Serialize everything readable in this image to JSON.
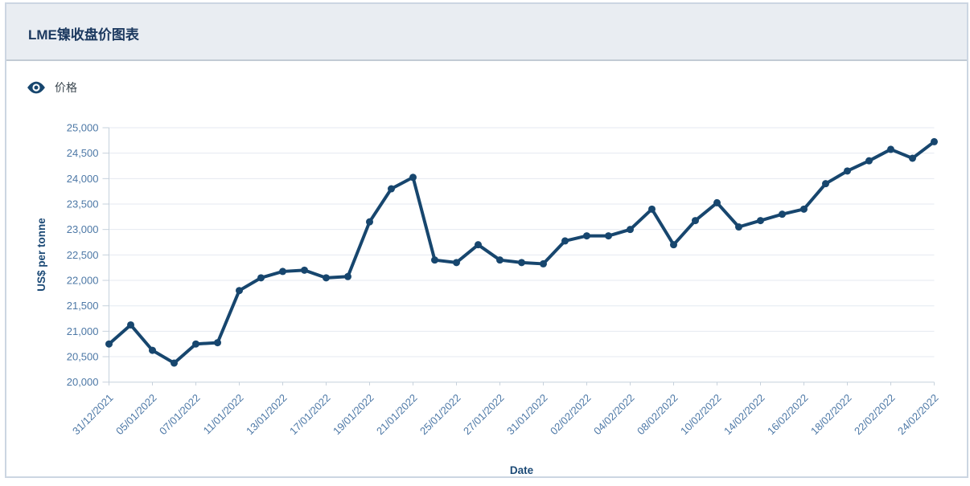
{
  "header": {
    "title": "LME镍收盘价图表"
  },
  "legend": {
    "items": [
      {
        "label": "价格",
        "icon": "eye-icon"
      }
    ]
  },
  "chart_data": {
    "type": "line",
    "title": "LME镍收盘价图表",
    "xlabel": "Date",
    "ylabel": "US$ per tonne",
    "x": [
      "31/12/2021",
      "04/01/2022",
      "05/01/2022",
      "06/01/2022",
      "07/01/2022",
      "10/01/2022",
      "11/01/2022",
      "12/01/2022",
      "13/01/2022",
      "14/01/2022",
      "17/01/2022",
      "18/01/2022",
      "19/01/2022",
      "20/01/2022",
      "21/01/2022",
      "24/01/2022",
      "25/01/2022",
      "26/01/2022",
      "27/01/2022",
      "28/01/2022",
      "31/01/2022",
      "01/02/2022",
      "02/02/2022",
      "03/02/2022",
      "04/02/2022",
      "07/02/2022",
      "08/02/2022",
      "09/02/2022",
      "10/02/2022",
      "11/02/2022",
      "14/02/2022",
      "15/02/2022",
      "16/02/2022",
      "17/02/2022",
      "18/02/2022",
      "21/02/2022",
      "22/02/2022",
      "23/02/2022",
      "24/02/2022"
    ],
    "series": [
      {
        "name": "价格",
        "values": [
          20750,
          21125,
          20625,
          20375,
          20750,
          20775,
          21800,
          22050,
          22175,
          22200,
          22050,
          22075,
          23150,
          23800,
          24025,
          22400,
          22350,
          22700,
          22400,
          22350,
          22325,
          22775,
          22875,
          22875,
          23000,
          23400,
          22700,
          23175,
          23525,
          23050,
          23175,
          23300,
          23400,
          23900,
          24150,
          24350,
          24575,
          24400,
          24725
        ]
      }
    ],
    "ylim": [
      20000,
      25000
    ],
    "ytick_step": 500,
    "ytick_labels": [
      "20,000",
      "20,500",
      "21,000",
      "21,500",
      "22,000",
      "22,500",
      "23,000",
      "23,500",
      "24,000",
      "24,500",
      "25,000"
    ],
    "xtick_labels_shown": [
      "31/12/2021",
      "05/01/2022",
      "07/01/2022",
      "11/01/2022",
      "13/01/2022",
      "17/01/2022",
      "19/01/2022",
      "21/01/2022",
      "25/01/2022",
      "27/01/2022",
      "31/01/2022",
      "02/02/2022",
      "04/02/2022",
      "08/02/2022",
      "10/02/2022",
      "14/02/2022",
      "16/02/2022",
      "18/02/2022",
      "22/02/2022",
      "24/02/2022"
    ],
    "xtick_every": 2,
    "xtick_rotation": -45,
    "grid": true,
    "legend_position": "top-left",
    "colors": {
      "line": "#17466e",
      "marker": "#17466e",
      "tick_label": "#4d78a6",
      "axis_title": "#1c4a76",
      "grid": "#e4eaf1",
      "axis_line": "#c6d1dc",
      "header_bg": "#e9edf2",
      "card_border": "#ccd6e2",
      "title_text": "#1d3a60",
      "legend_text": "#39454e"
    }
  }
}
